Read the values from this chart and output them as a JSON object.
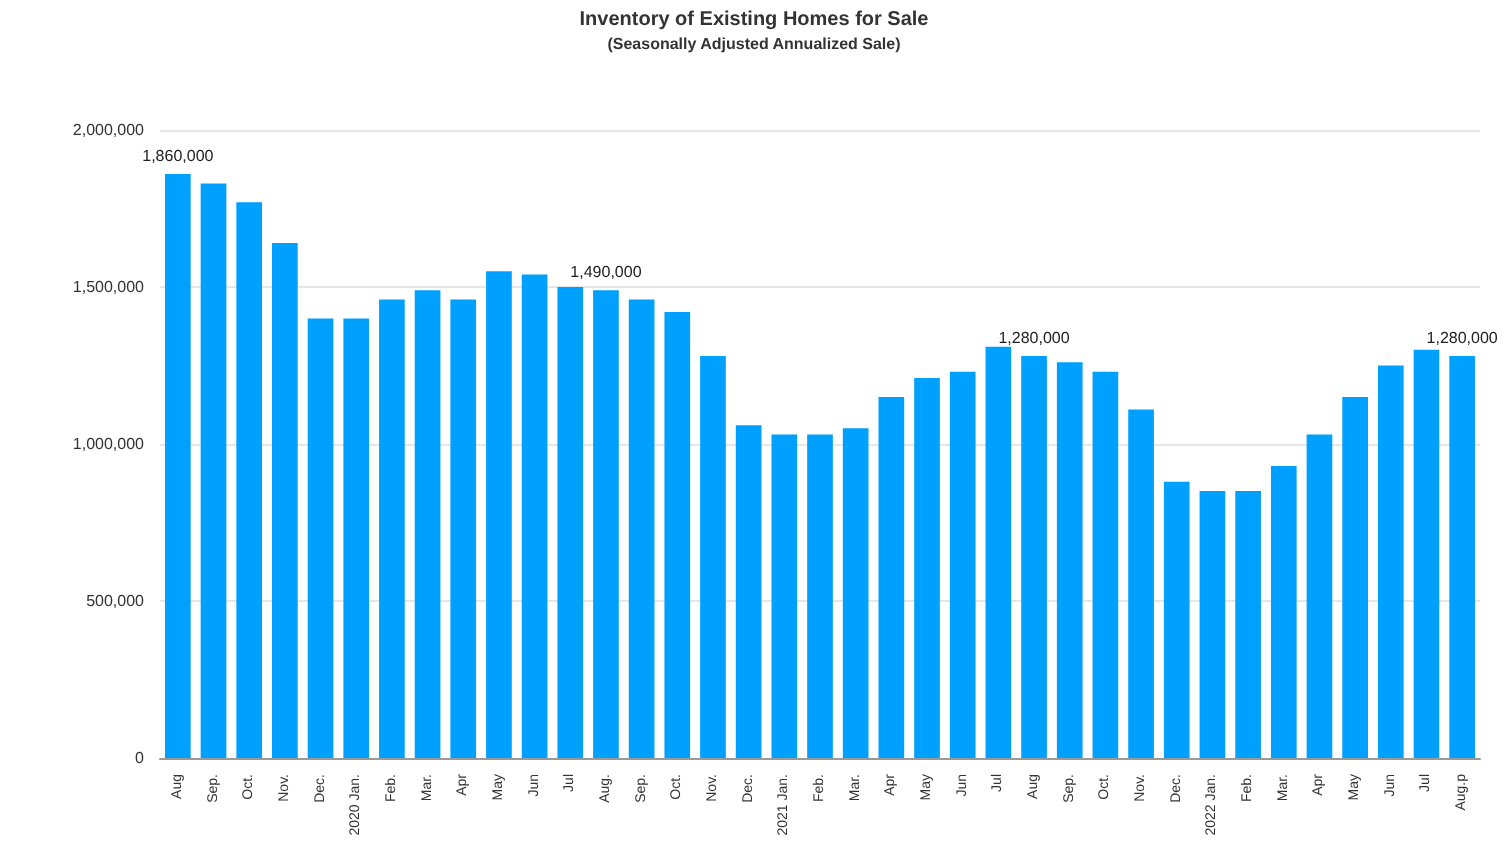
{
  "chart_data": {
    "type": "bar",
    "title": "Inventory of Existing Homes for Sale",
    "subtitle": "(Seasonally Adjusted Annualized Sale)",
    "categories": [
      "Aug",
      "Sep.",
      "Oct.",
      "Nov.",
      "Dec.",
      "2020 Jan.",
      "Feb.",
      "Mar.",
      "Apr",
      "May",
      "Jun",
      "Jul",
      "Aug.",
      "Sep.",
      "Oct.",
      "Nov.",
      "Dec.",
      "2021 Jan.",
      "Feb.",
      "Mar.",
      "Apr",
      "May",
      "Jun",
      "Jul",
      "Aug",
      "Sep.",
      "Oct.",
      "Nov.",
      "Dec.",
      "2022 Jan.",
      "Feb.",
      "Mar.",
      "Apr",
      "May",
      "Jun",
      "Jul",
      "Aug.p"
    ],
    "values": [
      1860000,
      1830000,
      1770000,
      1640000,
      1400000,
      1400000,
      1460000,
      1490000,
      1460000,
      1550000,
      1540000,
      1500000,
      1490000,
      1460000,
      1420000,
      1280000,
      1060000,
      1030000,
      1030000,
      1050000,
      1150000,
      1210000,
      1230000,
      1310000,
      1280000,
      1260000,
      1230000,
      1110000,
      880000,
      850000,
      850000,
      930000,
      1030000,
      1150000,
      1250000,
      1300000,
      1280000
    ],
    "value_labels": [
      "1,860,000",
      null,
      null,
      null,
      null,
      null,
      null,
      null,
      null,
      null,
      null,
      null,
      "1,490,000",
      null,
      null,
      null,
      null,
      null,
      null,
      null,
      null,
      null,
      null,
      null,
      "1,280,000",
      null,
      null,
      null,
      null,
      null,
      null,
      null,
      null,
      null,
      null,
      null,
      "1,280,000"
    ],
    "color": "#00a0ff",
    "ylim": [
      0,
      2000000
    ],
    "yticks": [
      0,
      {
        "value": 500000,
        "label": "500,000"
      },
      {
        "value": 1000000,
        "label": "1,000,000"
      },
      {
        "value": 1500000,
        "label": "1,500,000"
      },
      {
        "value": 2000000,
        "label": "2,000,000"
      }
    ],
    "grid": "y"
  }
}
